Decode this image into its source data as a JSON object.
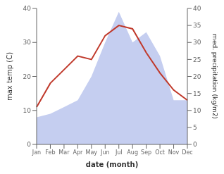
{
  "chart_data": {
    "type": "line",
    "x_label": "date (month)",
    "y_label": "max temp (C)",
    "y2_label": "med. precipitation (kg/m2)",
    "categories": [
      "Jan",
      "Feb",
      "Mar",
      "Apr",
      "May",
      "Jun",
      "Jul",
      "Aug",
      "Sep",
      "Oct",
      "Nov",
      "Dec"
    ],
    "series": [
      {
        "type": "area",
        "axis": "y2",
        "color": "#c5cef0",
        "values": [
          8,
          9,
          11,
          13,
          20,
          30,
          39,
          30,
          33,
          26,
          13,
          13
        ]
      },
      {
        "type": "line",
        "axis": "y",
        "color": "#c0392b",
        "values": [
          11,
          18,
          22,
          26,
          25,
          32,
          35,
          34,
          27,
          21,
          16,
          13
        ]
      }
    ],
    "ylim": [
      0,
      40
    ],
    "yticks": [
      0,
      10,
      20,
      30,
      40
    ],
    "y2lim": [
      0,
      40
    ],
    "y2ticks": [
      0,
      5,
      10,
      15,
      20,
      25,
      30,
      35,
      40
    ],
    "grid": false
  }
}
